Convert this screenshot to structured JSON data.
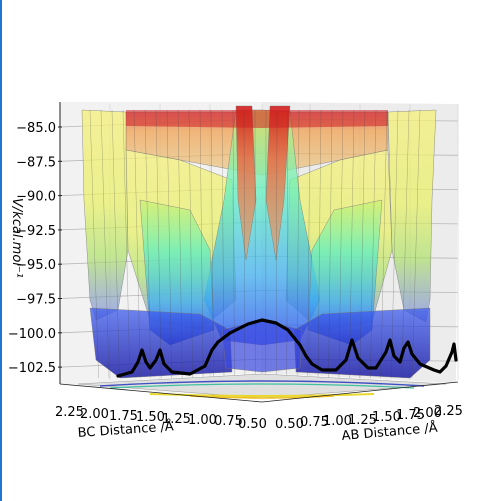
{
  "chart_data": {
    "type": "surface3d",
    "zlabel": "V/kcal.mol⁻¹",
    "xlabel": "BC Distance /Å",
    "ylabel": "AB Distance /Å",
    "z_ticks": [
      "−85.0",
      "−87.5",
      "−90.0",
      "−92.5",
      "−95.0",
      "−97.5",
      "−100.0",
      "−102.5"
    ],
    "z_values": [
      -85.0,
      -87.5,
      -90.0,
      -92.5,
      -95.0,
      -97.5,
      -100.0,
      -102.5
    ],
    "zlim": [
      -103.5,
      -84.0
    ],
    "bc_ticks": [
      "2.25",
      "2.00",
      "1.75",
      "1.50",
      "1.25",
      "1.00",
      "0.75",
      "0.50"
    ],
    "ab_ticks": [
      "0.50",
      "0.75",
      "1.00",
      "1.25",
      "1.50",
      "1.75",
      "2.00",
      "2.25"
    ],
    "grid": true,
    "colormap": [
      "#1010d0",
      "#3060ff",
      "#40e0d0",
      "#e8f060",
      "#f0a030",
      "#e02020"
    ],
    "trajectory_color": "#000000"
  }
}
